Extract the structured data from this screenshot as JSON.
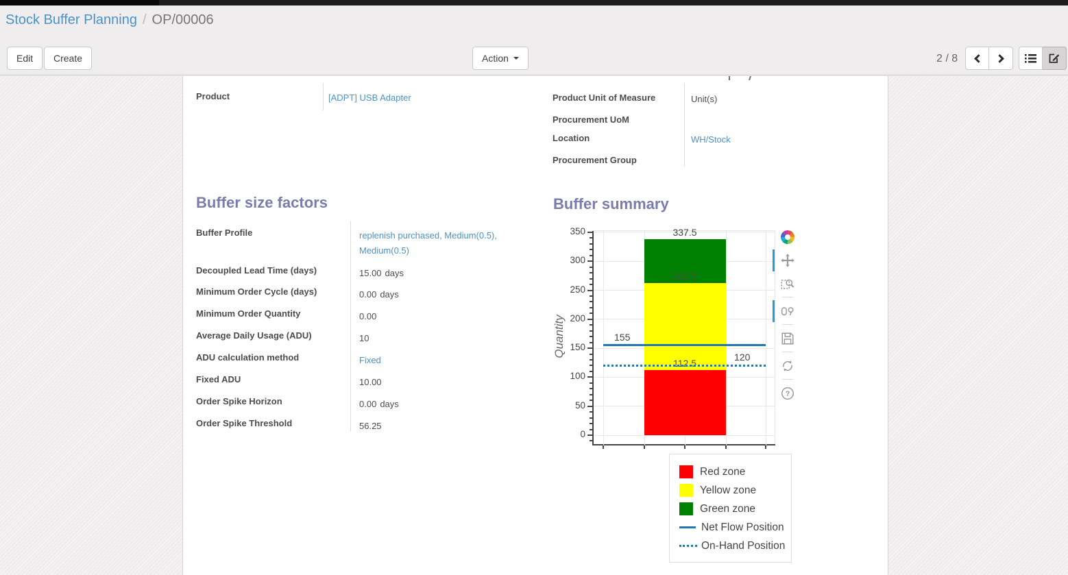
{
  "breadcrumb": {
    "parent": "Stock Buffer Planning",
    "separator": "/",
    "current": "OP/00006"
  },
  "control_panel": {
    "edit_label": "Edit",
    "create_label": "Create",
    "action_label": "Action",
    "pager": "2 / 8"
  },
  "form": {
    "product": {
      "label": "Product",
      "value": "[ADPT] USB Adapter"
    },
    "right_fields": [
      {
        "label": "Product Unit of Measure",
        "value": "Unit(s)",
        "link": false
      },
      {
        "label": "Procurement UoM",
        "value": "",
        "link": false
      },
      {
        "label": "Location",
        "value": "WH/Stock",
        "link": true
      },
      {
        "label": "Procurement Group",
        "value": "",
        "link": false
      }
    ],
    "buffer_size_factors": {
      "title": "Buffer size factors",
      "fields": [
        {
          "label": "Buffer Profile",
          "value": "replenish purchased, Medium(0.5), Medium(0.5)",
          "link": true,
          "suffix": ""
        },
        {
          "label": "Decoupled Lead Time (days)",
          "value": "15.00",
          "link": false,
          "suffix": "days"
        },
        {
          "label": "Minimum Order Cycle (days)",
          "value": "0.00",
          "link": false,
          "suffix": "days"
        },
        {
          "label": "Minimum Order Quantity",
          "value": "0.00",
          "link": false,
          "suffix": ""
        },
        {
          "label": "Average Daily Usage (ADU)",
          "value": "10",
          "link": false,
          "suffix": ""
        },
        {
          "label": "ADU calculation method",
          "value": "Fixed",
          "link": true,
          "suffix": ""
        },
        {
          "label": "Fixed ADU",
          "value": "10.00",
          "link": false,
          "suffix": ""
        },
        {
          "label": "Order Spike Horizon",
          "value": "0.00",
          "link": false,
          "suffix": "days"
        },
        {
          "label": "Order Spike Threshold",
          "value": "56.25",
          "link": false,
          "suffix": ""
        }
      ]
    },
    "buffer_summary": {
      "title": "Buffer summary"
    }
  },
  "chart_data": {
    "type": "bar",
    "title": "Buffer summary",
    "ylabel": "Quantity",
    "ylim": [
      0,
      350
    ],
    "yticks": [
      0,
      50,
      100,
      150,
      200,
      250,
      300,
      350
    ],
    "grid": true,
    "legend_position": "bottom-right",
    "zones": [
      {
        "name": "Red zone",
        "from": 0,
        "to": 112.5,
        "label": "112.5",
        "color": "#ff0000",
        "label_color": "#555555"
      },
      {
        "name": "Yellow zone",
        "from": 112.5,
        "to": 262.5,
        "label": "262.5",
        "color": "#ffff00",
        "label_color": "#44503f"
      },
      {
        "name": "Green zone",
        "from": 262.5,
        "to": 337.5,
        "label": "337.5",
        "color": "#008000",
        "label_color": "#444444"
      }
    ],
    "lines": [
      {
        "name": "Net Flow Position",
        "value": 155,
        "label": "155",
        "style": "solid",
        "color": "#1f77b4"
      },
      {
        "name": "On-Hand Position",
        "value": 120,
        "label": "120",
        "style": "dotted",
        "color": "#1f77b4"
      }
    ],
    "legend": [
      {
        "label": "Red zone",
        "swatch": "square",
        "color": "#ff0000"
      },
      {
        "label": "Yellow zone",
        "swatch": "square",
        "color": "#ffff00"
      },
      {
        "label": "Green zone",
        "swatch": "square",
        "color": "#008000"
      },
      {
        "label": "Net Flow Position",
        "swatch": "line",
        "color": "#1f77b4"
      },
      {
        "label": "On-Hand Position",
        "swatch": "dotted",
        "color": "#1f77b4"
      }
    ]
  },
  "modebar": {
    "icons": [
      {
        "name": "plotly-logo-icon",
        "active": false
      },
      {
        "name": "pan-icon",
        "active": true
      },
      {
        "name": "box-zoom-icon",
        "active": false
      },
      {
        "name": "compare-hover-icon",
        "active": true
      },
      {
        "name": "save-icon",
        "active": false
      },
      {
        "name": "reset-axes-icon",
        "active": false
      },
      {
        "name": "help-icon",
        "active": false
      }
    ],
    "separators_after": [
      2,
      3,
      4,
      5
    ]
  }
}
